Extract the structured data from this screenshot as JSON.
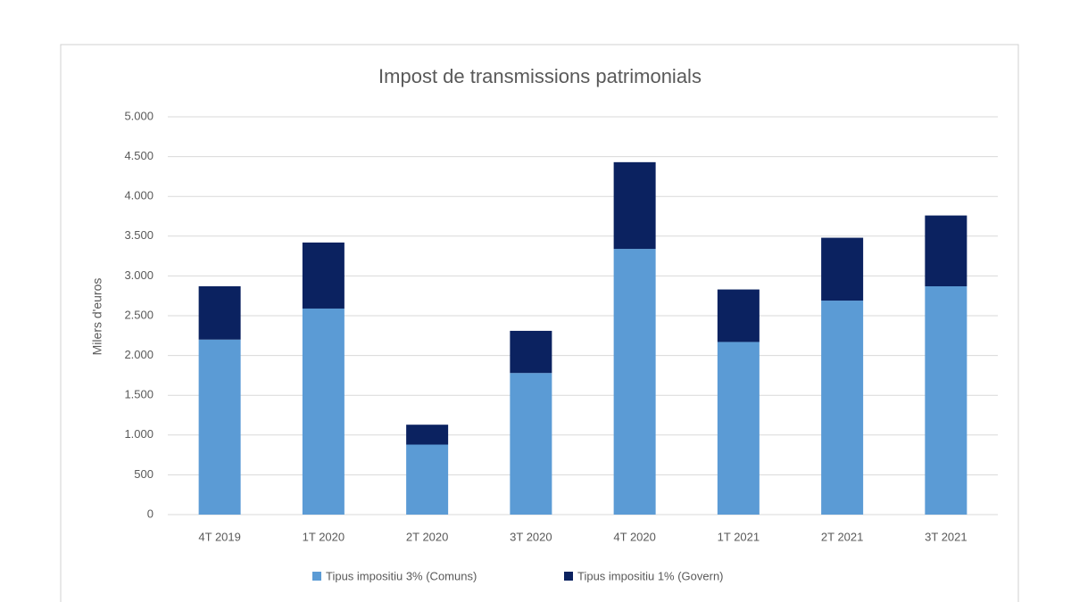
{
  "chart_data": {
    "type": "stacked_bar",
    "title": "Impost de transmissions patrimonials",
    "y_label": "Milers d'euros",
    "categories": [
      "4T 2019",
      "1T 2020",
      "2T 2020",
      "3T 2020",
      "4T 2020",
      "1T 2021",
      "2T 2021",
      "3T 2021"
    ],
    "series": [
      {
        "name": "Tipus impositiu 3% (Comuns)",
        "color": "#5b9bd5",
        "values": [
          2200,
          2590,
          880,
          1780,
          3340,
          2170,
          2690,
          2870
        ]
      },
      {
        "name": "Tipus impositiu 1% (Govern)",
        "color": "#0b2260",
        "values": [
          670,
          830,
          250,
          530,
          1090,
          660,
          790,
          890
        ]
      }
    ],
    "ylim": [
      0,
      5000
    ],
    "yticks": [
      0,
      500,
      {
        "value": 1000,
        "label": "1.000"
      },
      {
        "value": 1500,
        "label": "1.500"
      },
      {
        "value": 2000,
        "label": "2.000"
      },
      {
        "value": 2500,
        "label": "2.500"
      },
      {
        "value": 3000,
        "label": "3.000"
      },
      {
        "value": 3500,
        "label": "3.500"
      },
      {
        "value": 4000,
        "label": "4.000"
      },
      {
        "value": 4500,
        "label": "4.500"
      },
      {
        "value": 5000,
        "label": "5.000"
      }
    ],
    "grid": true,
    "legend": "bottom"
  }
}
